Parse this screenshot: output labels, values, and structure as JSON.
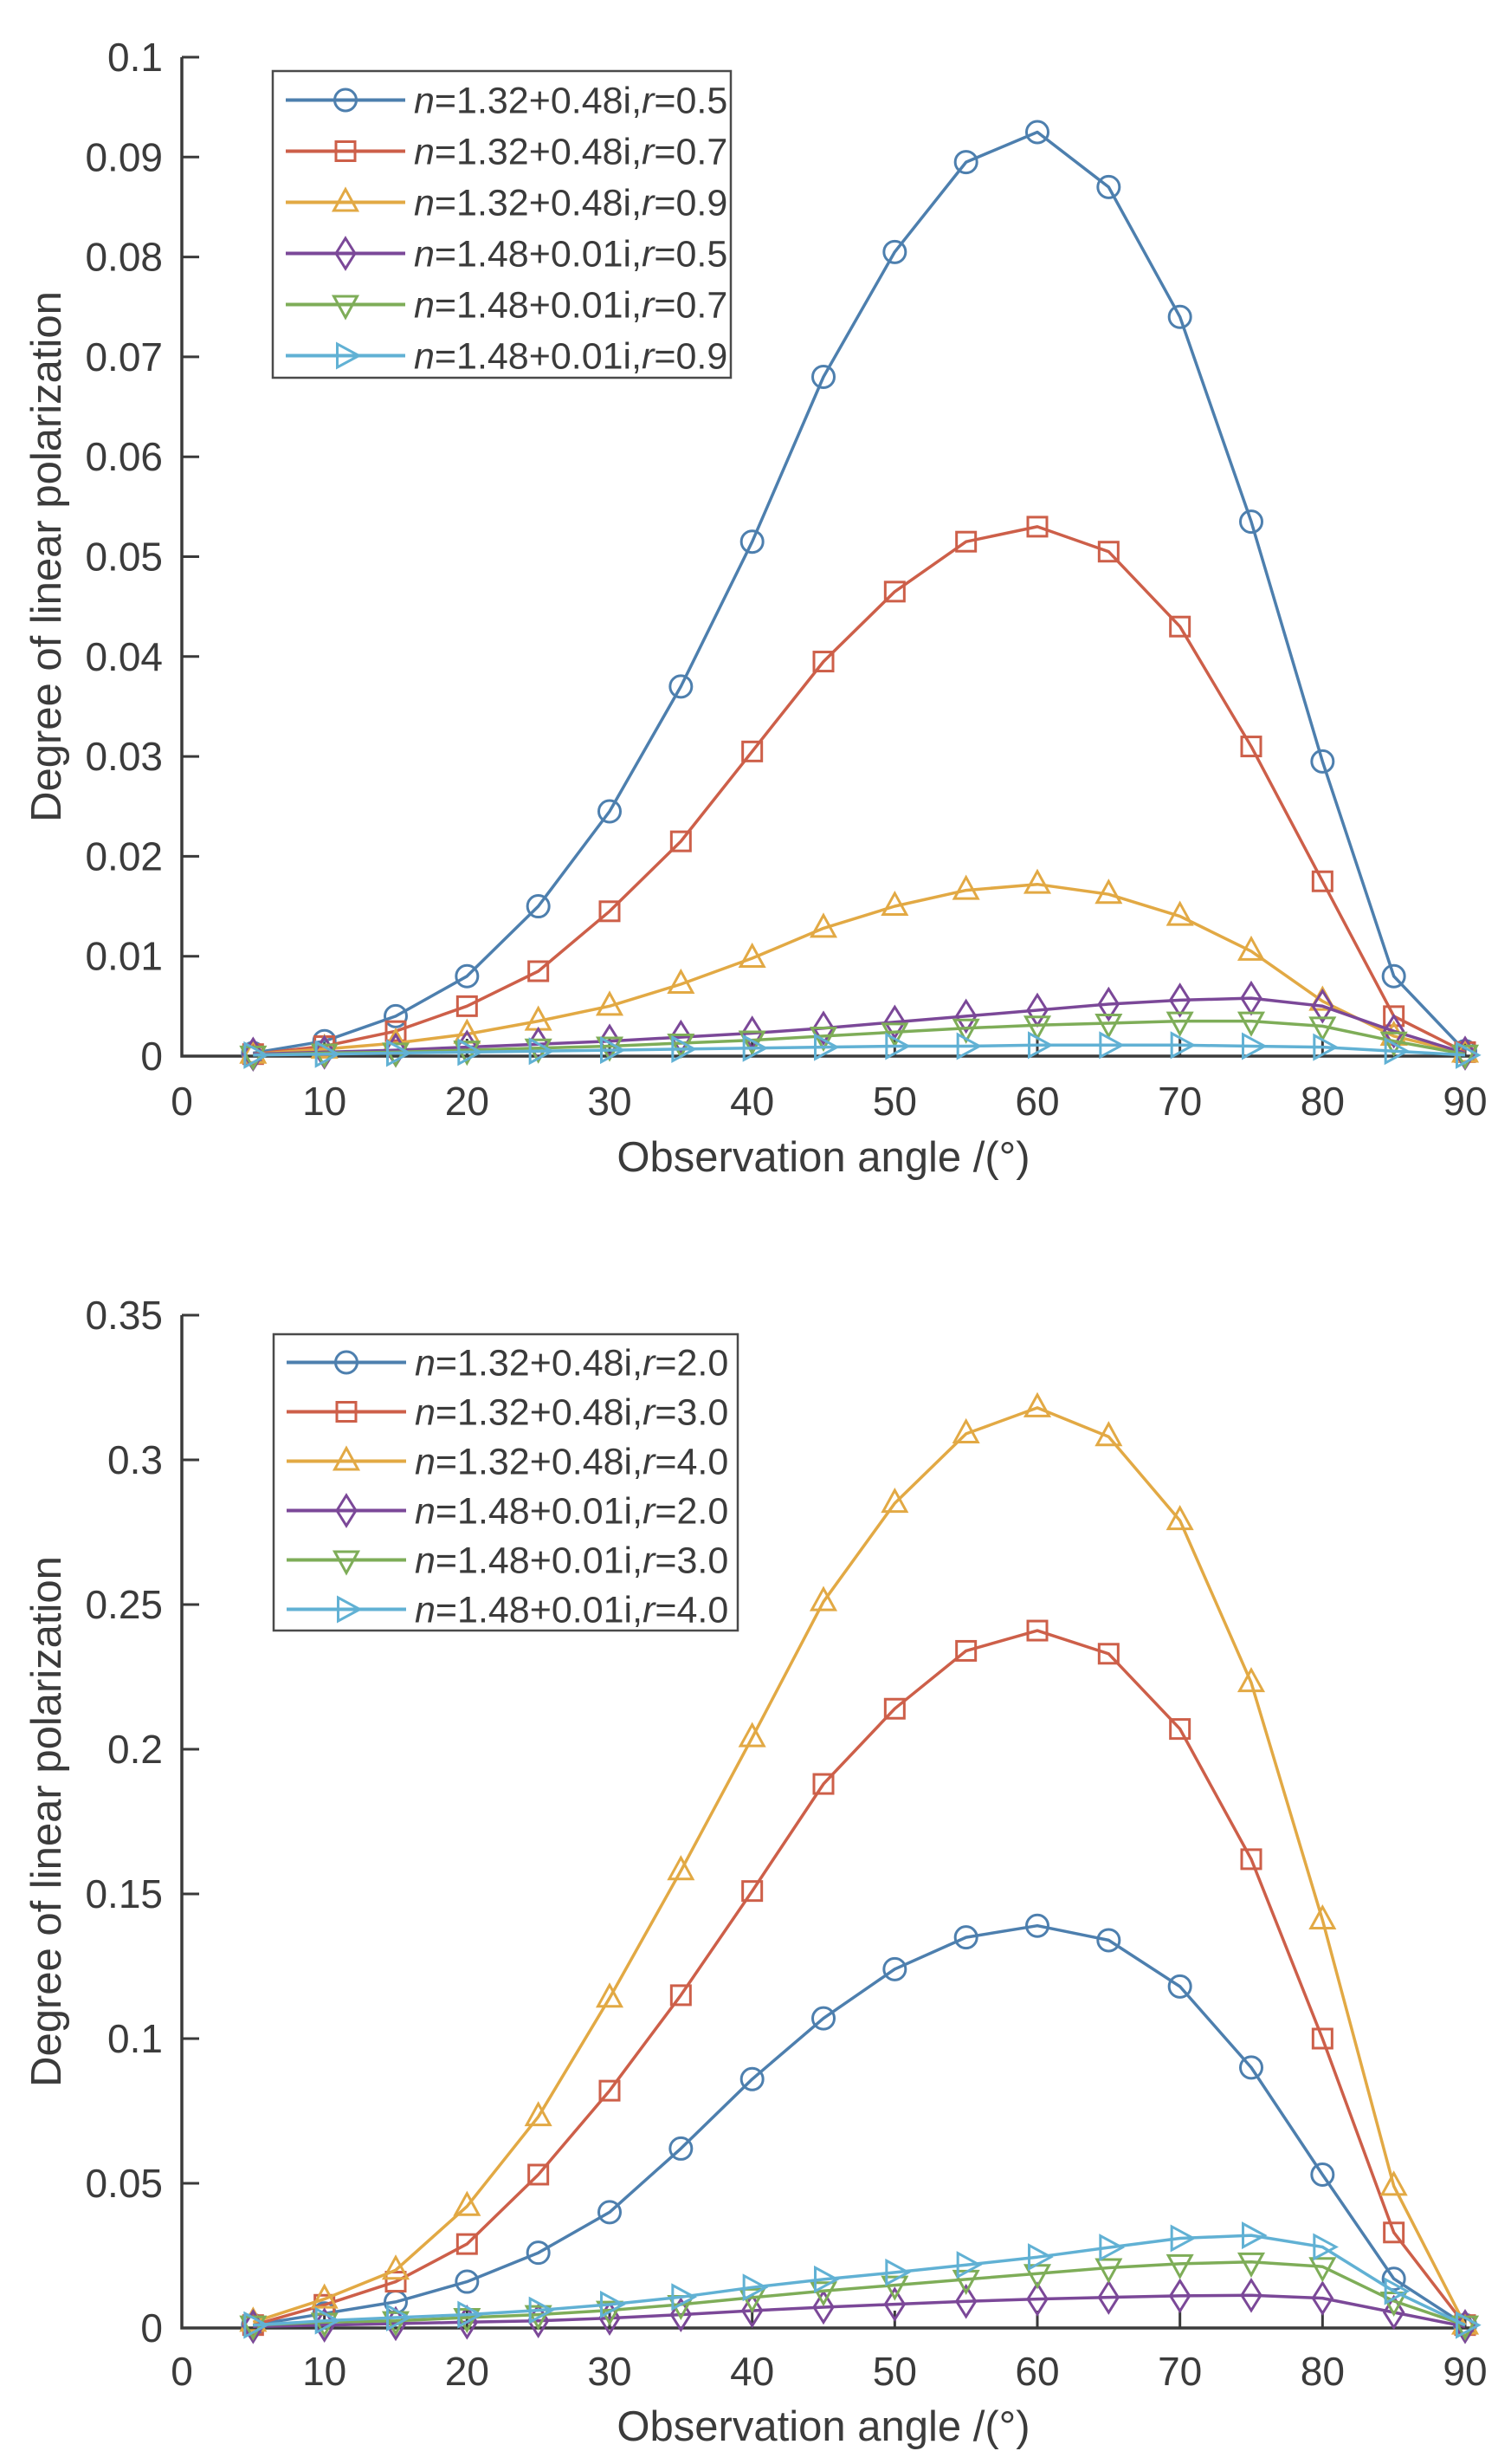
{
  "figure": {
    "background": "#ffffff",
    "axis_color": "#3a3a3a",
    "text_color": "#3b3b3b",
    "legend_border_color": "#4a4a4a"
  },
  "chart_data": [
    {
      "type": "line",
      "title": "",
      "xlabel": "Observation angle /(°)",
      "ylabel": "Degree of linear polarization",
      "xlim": [
        0,
        90
      ],
      "ylim": [
        0,
        0.1
      ],
      "grid": false,
      "legend_position": "upper-left",
      "xticks": [
        "0",
        "10",
        "20",
        "30",
        "40",
        "50",
        "60",
        "70",
        "80",
        "90"
      ],
      "yticks": [
        "0",
        "0.01",
        "0.02",
        "0.03",
        "0.04",
        "0.05",
        "0.06",
        "0.07",
        "0.08",
        "0.09",
        "0.1"
      ],
      "x": [
        5,
        10,
        15,
        20,
        25,
        30,
        35,
        40,
        45,
        50,
        55,
        60,
        65,
        70,
        75,
        80,
        85,
        90
      ],
      "series": [
        {
          "label": "n=1.32+0.48i,r=0.5",
          "color": "#4d7fae",
          "marker": "circle",
          "values": [
            0.0003,
            0.0015,
            0.004,
            0.008,
            0.015,
            0.0245,
            0.037,
            0.0515,
            0.068,
            0.0805,
            0.0895,
            0.0925,
            0.087,
            0.074,
            0.0535,
            0.0295,
            0.008,
            0.0005
          ]
        },
        {
          "label": "n=1.32+0.48i,r=0.7",
          "color": "#cd5f49",
          "marker": "square",
          "values": [
            0.0002,
            0.001,
            0.0025,
            0.005,
            0.0085,
            0.0145,
            0.0215,
            0.0305,
            0.0395,
            0.0465,
            0.0515,
            0.053,
            0.0505,
            0.043,
            0.031,
            0.0175,
            0.004,
            0.0004
          ]
        },
        {
          "label": "n=1.32+0.48i,r=0.9",
          "color": "#e2a944",
          "marker": "triangle-up",
          "values": [
            0.0002,
            0.0007,
            0.0013,
            0.0022,
            0.0035,
            0.005,
            0.0072,
            0.0098,
            0.0128,
            0.015,
            0.0166,
            0.0172,
            0.0162,
            0.014,
            0.0105,
            0.0055,
            0.002,
            0.0003
          ]
        },
        {
          "label": "n=1.48+0.01i,r=0.5",
          "color": "#7b4898",
          "marker": "diamond",
          "values": [
            0.0002,
            0.0004,
            0.0006,
            0.0009,
            0.0012,
            0.0015,
            0.0019,
            0.0023,
            0.0028,
            0.0034,
            0.004,
            0.0046,
            0.0052,
            0.0056,
            0.0058,
            0.005,
            0.0025,
            0.0003
          ]
        },
        {
          "label": "n=1.48+0.01i,r=0.7",
          "color": "#7ead58",
          "marker": "triangle-down",
          "values": [
            0.0001,
            0.0003,
            0.0004,
            0.0006,
            0.0008,
            0.001,
            0.0013,
            0.0016,
            0.002,
            0.0024,
            0.0028,
            0.0031,
            0.0033,
            0.0035,
            0.0035,
            0.003,
            0.0015,
            0.0002
          ]
        },
        {
          "label": "n=1.48+0.01i,r=0.9",
          "color": "#61b1d4",
          "marker": "triangle-right",
          "values": [
            0.0001,
            0.0002,
            0.0003,
            0.0004,
            0.0005,
            0.0006,
            0.0007,
            0.0008,
            0.0009,
            0.001,
            0.001,
            0.0011,
            0.0011,
            0.0011,
            0.001,
            0.0009,
            0.0005,
            0.0001
          ]
        }
      ]
    },
    {
      "type": "line",
      "title": "",
      "xlabel": "Observation angle /(°)",
      "ylabel": "Degree of linear polarization",
      "xlim": [
        0,
        90
      ],
      "ylim": [
        0,
        0.35
      ],
      "grid": false,
      "legend_position": "upper-left",
      "xticks": [
        "0",
        "10",
        "20",
        "30",
        "40",
        "50",
        "60",
        "70",
        "80",
        "90"
      ],
      "yticks": [
        "0",
        "0.05",
        "0.1",
        "0.15",
        "0.2",
        "0.25",
        "0.3",
        "0.35"
      ],
      "x": [
        5,
        10,
        15,
        20,
        25,
        30,
        35,
        40,
        45,
        50,
        55,
        60,
        65,
        70,
        75,
        80,
        85,
        90
      ],
      "series": [
        {
          "label": "n=1.32+0.48i,r=2.0",
          "color": "#4d7fae",
          "marker": "circle",
          "values": [
            0.001,
            0.005,
            0.009,
            0.016,
            0.026,
            0.04,
            0.062,
            0.086,
            0.107,
            0.124,
            0.135,
            0.139,
            0.134,
            0.118,
            0.09,
            0.053,
            0.017,
            0.001
          ]
        },
        {
          "label": "n=1.32+0.48i,r=3.0",
          "color": "#cd5f49",
          "marker": "square",
          "values": [
            0.001,
            0.008,
            0.016,
            0.029,
            0.053,
            0.082,
            0.115,
            0.151,
            0.188,
            0.214,
            0.234,
            0.241,
            0.233,
            0.207,
            0.162,
            0.1,
            0.033,
            0.001
          ]
        },
        {
          "label": "n=1.32+0.48i,r=4.0",
          "color": "#e2a944",
          "marker": "triangle-up",
          "values": [
            0.002,
            0.01,
            0.02,
            0.042,
            0.073,
            0.114,
            0.158,
            0.204,
            0.251,
            0.285,
            0.309,
            0.318,
            0.308,
            0.279,
            0.223,
            0.141,
            0.049,
            0.001
          ]
        },
        {
          "label": "n=1.48+0.01i,r=2.0",
          "color": "#7b4898",
          "marker": "diamond",
          "values": [
            0.0005,
            0.001,
            0.0015,
            0.002,
            0.0025,
            0.0034,
            0.0046,
            0.006,
            0.0072,
            0.0082,
            0.0092,
            0.01,
            0.0106,
            0.0111,
            0.0113,
            0.0103,
            0.0054,
            0.0005
          ]
        },
        {
          "label": "n=1.48+0.01i,r=3.0",
          "color": "#7ead58",
          "marker": "triangle-down",
          "values": [
            0.001,
            0.002,
            0.0025,
            0.0036,
            0.0046,
            0.0061,
            0.0081,
            0.0105,
            0.0128,
            0.0148,
            0.0168,
            0.0188,
            0.0208,
            0.0222,
            0.0228,
            0.0212,
            0.0093,
            0.001
          ]
        },
        {
          "label": "n=1.48+0.01i,r=4.0",
          "color": "#61b1d4",
          "marker": "triangle-right",
          "values": [
            0.001,
            0.0025,
            0.0036,
            0.0046,
            0.0061,
            0.0081,
            0.0107,
            0.014,
            0.0168,
            0.0192,
            0.0218,
            0.0245,
            0.0278,
            0.031,
            0.032,
            0.028,
            0.0127,
            0.001
          ]
        }
      ]
    }
  ]
}
